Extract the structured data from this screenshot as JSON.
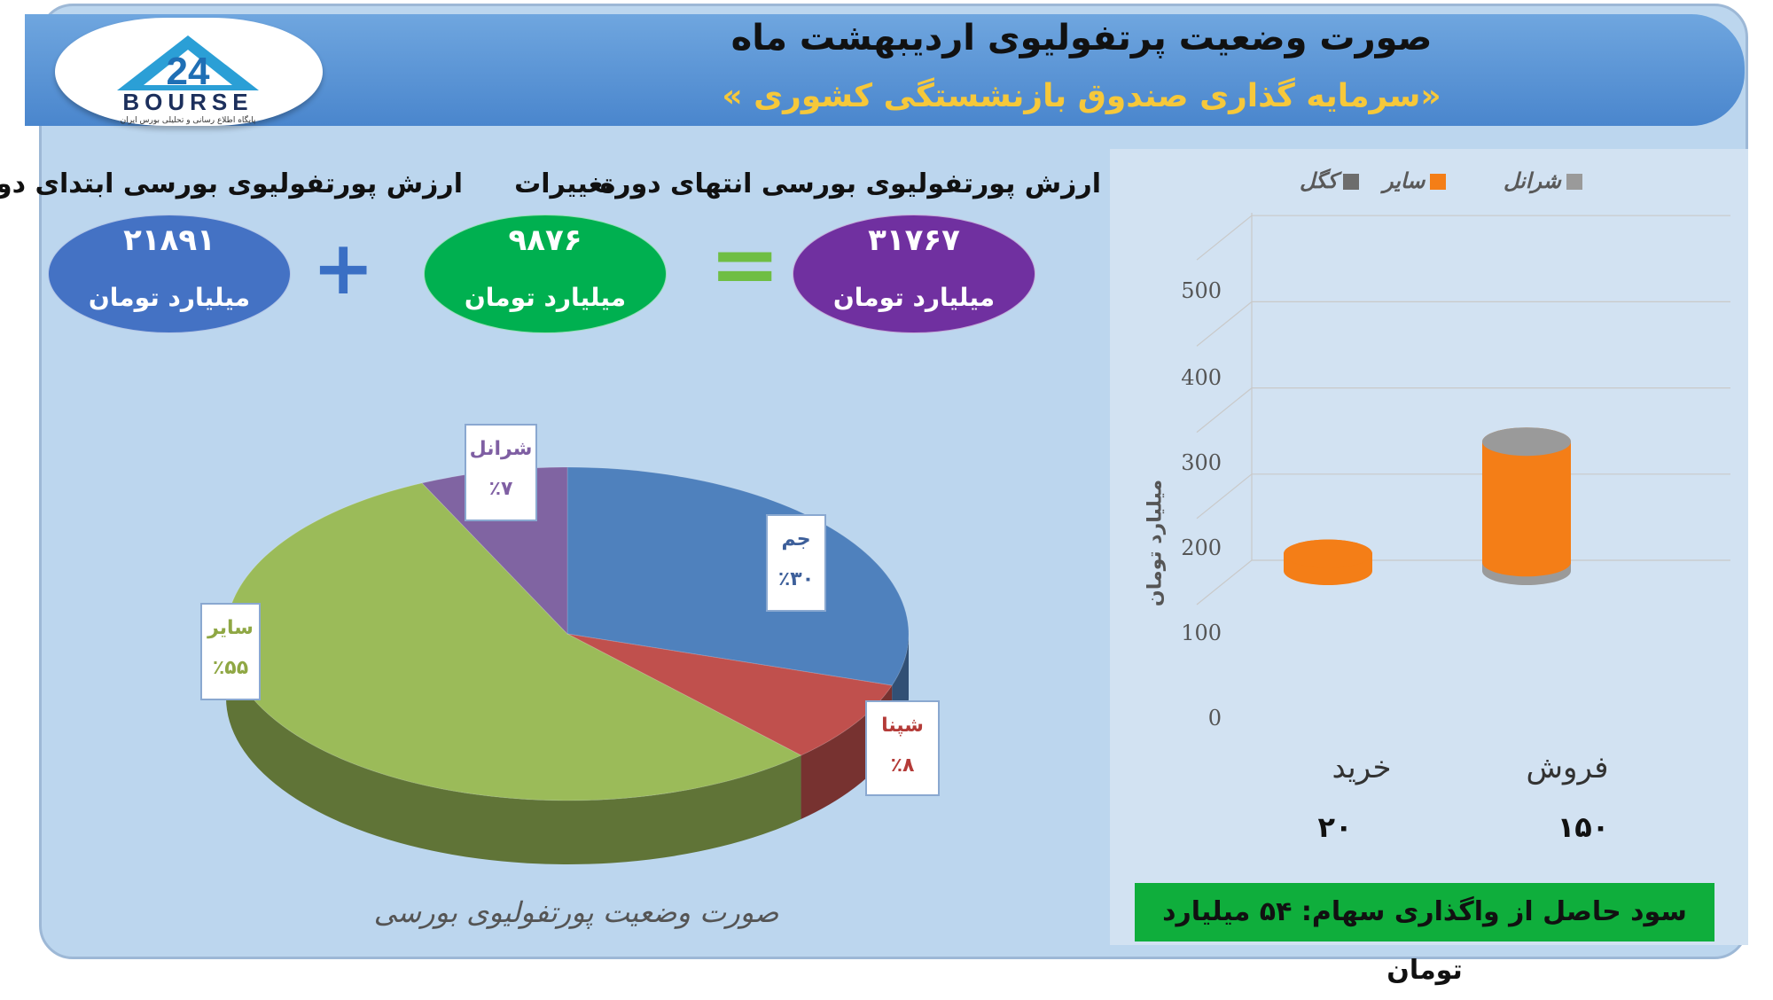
{
  "header": {
    "title": "صورت وضعیت پرتفولیوی اردیبهشت ماه",
    "subtitle": "«سرمایه گذاری صندوق بازنشستگی کشوری »",
    "logo_text": "BOURSE",
    "logo_tagline": "پایگاه اطلاع رسانی و تحلیلی بورس ایران"
  },
  "summary": {
    "end_label": "ارزش پورتفولیوی بورسی انتهای دوره",
    "end_value": "۳۱۷۶۷",
    "change_label": "تغییرات",
    "change_value": "۹۸۷۶",
    "start_label": "ارزش پورتفولیوی بورسی ابتدای دوره",
    "start_value": "۲۱۸۹۱",
    "unit": "میلیارد تومان",
    "plus": "+",
    "equals": "="
  },
  "colors": {
    "start": "#4472c4",
    "change": "#00b050",
    "end": "#7030a0",
    "slice_jam": "#4f81bd",
    "slice_shepna": "#c0504d",
    "slice_sayer": "#9bbb59",
    "slice_sharanel": "#8064a2",
    "bar_orange": "#f47e17",
    "bar_gray": "#9a9a9a"
  },
  "chart_data": [
    {
      "type": "pie",
      "title": "صورت وضعیت پورتفولیوی بورسی",
      "slices": [
        {
          "name": "جم",
          "value": 30,
          "label": "٪۳۰"
        },
        {
          "name": "شپنا",
          "value": 8,
          "label": "٪۸"
        },
        {
          "name": "سایر",
          "value": 55,
          "label": "٪۵۵"
        },
        {
          "name": "شرانل",
          "value": 7,
          "label": "٪۷"
        }
      ]
    },
    {
      "type": "bar",
      "categories": [
        "خرید",
        "فروش"
      ],
      "category_values": [
        "۲۰",
        "۱۵۰"
      ],
      "series": [
        {
          "name": "شرانل",
          "values": [
            0,
            10
          ]
        },
        {
          "name": "سایر",
          "values": [
            20,
            140
          ]
        },
        {
          "name": "کگل",
          "values": [
            0,
            0
          ]
        }
      ],
      "ylabel": "میلیارد تومان",
      "ylim": [
        0,
        500
      ],
      "yticks": [
        "0",
        "100",
        "200",
        "300",
        "400",
        "500"
      ],
      "legend": [
        "شرانل",
        "سایر",
        "کگل"
      ],
      "legend_position": "top"
    }
  ],
  "footer": {
    "profit": "سود حاصل از واگذاری سهام: ۵۴ میلیارد تومان"
  }
}
